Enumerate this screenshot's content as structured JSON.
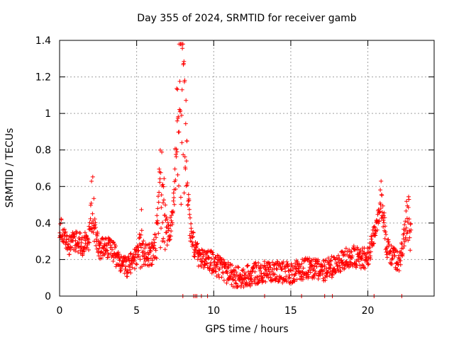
{
  "chart_data": {
    "type": "scatter",
    "title": "Day 355 of 2024, SRMTID for receiver gamb",
    "xlabel": "GPS time / hours",
    "ylabel": "SRMTID / TECUs",
    "xlim": [
      0,
      24.3
    ],
    "ylim": [
      0,
      1.4
    ],
    "xticks": [
      0,
      5,
      10,
      15,
      20
    ],
    "yticks": [
      0,
      0.2,
      0.4,
      0.6,
      0.8,
      1,
      1.2,
      1.4
    ],
    "ytick_labels": [
      "0",
      "0.2",
      "0.4",
      "0.6",
      "0.8",
      "1",
      "1.2",
      "1.4"
    ],
    "grid": true,
    "marker": "plus",
    "color": "#ff0000",
    "trend": [
      [
        0.0,
        0.38
      ],
      [
        0.3,
        0.33
      ],
      [
        0.6,
        0.28
      ],
      [
        1.0,
        0.3
      ],
      [
        1.5,
        0.28
      ],
      [
        2.0,
        0.32
      ],
      [
        2.3,
        0.34
      ],
      [
        2.6,
        0.26
      ],
      [
        3.0,
        0.27
      ],
      [
        3.5,
        0.24
      ],
      [
        4.0,
        0.17
      ],
      [
        4.5,
        0.16
      ],
      [
        5.0,
        0.22
      ],
      [
        5.5,
        0.22
      ],
      [
        6.0,
        0.23
      ],
      [
        6.5,
        0.3
      ],
      [
        7.0,
        0.33
      ],
      [
        7.3,
        0.4
      ],
      [
        7.6,
        0.55
      ],
      [
        7.9,
        0.7
      ],
      [
        8.2,
        0.58
      ],
      [
        8.5,
        0.35
      ],
      [
        8.8,
        0.25
      ],
      [
        9.2,
        0.2
      ],
      [
        9.6,
        0.2
      ],
      [
        10.0,
        0.18
      ],
      [
        10.5,
        0.15
      ],
      [
        11.0,
        0.12
      ],
      [
        11.5,
        0.1
      ],
      [
        12.0,
        0.1
      ],
      [
        12.5,
        0.12
      ],
      [
        13.0,
        0.13
      ],
      [
        13.5,
        0.13
      ],
      [
        14.0,
        0.14
      ],
      [
        14.5,
        0.13
      ],
      [
        15.0,
        0.13
      ],
      [
        15.5,
        0.14
      ],
      [
        16.0,
        0.15
      ],
      [
        16.5,
        0.16
      ],
      [
        17.0,
        0.14
      ],
      [
        17.5,
        0.15
      ],
      [
        18.0,
        0.18
      ],
      [
        18.5,
        0.2
      ],
      [
        19.0,
        0.22
      ],
      [
        19.5,
        0.21
      ],
      [
        20.0,
        0.21
      ],
      [
        20.3,
        0.3
      ],
      [
        20.6,
        0.4
      ],
      [
        20.9,
        0.48
      ],
      [
        21.2,
        0.28
      ],
      [
        21.5,
        0.22
      ],
      [
        21.8,
        0.2
      ],
      [
        22.0,
        0.18
      ],
      [
        22.3,
        0.3
      ],
      [
        22.6,
        0.36
      ],
      [
        22.8,
        0.3
      ]
    ],
    "spikes": [
      {
        "x": 2.1,
        "width": 0.15,
        "amp": 0.3
      },
      {
        "x": 5.3,
        "width": 0.15,
        "amp": 0.18
      },
      {
        "x": 6.6,
        "width": 0.25,
        "amp": 0.55
      },
      {
        "x": 7.8,
        "width": 0.25,
        "amp": 0.95
      },
      {
        "x": 8.1,
        "width": 0.2,
        "amp": 0.55
      },
      {
        "x": 20.9,
        "width": 0.15,
        "amp": 0.15
      },
      {
        "x": 22.6,
        "width": 0.15,
        "amp": 0.2
      }
    ],
    "zero_points": [
      8.0,
      8.7,
      8.8,
      8.9,
      9.2,
      9.6,
      13.3,
      15.7,
      17.2,
      17.7,
      20.4,
      22.2
    ],
    "sample_step_hours": 0.0167
  }
}
